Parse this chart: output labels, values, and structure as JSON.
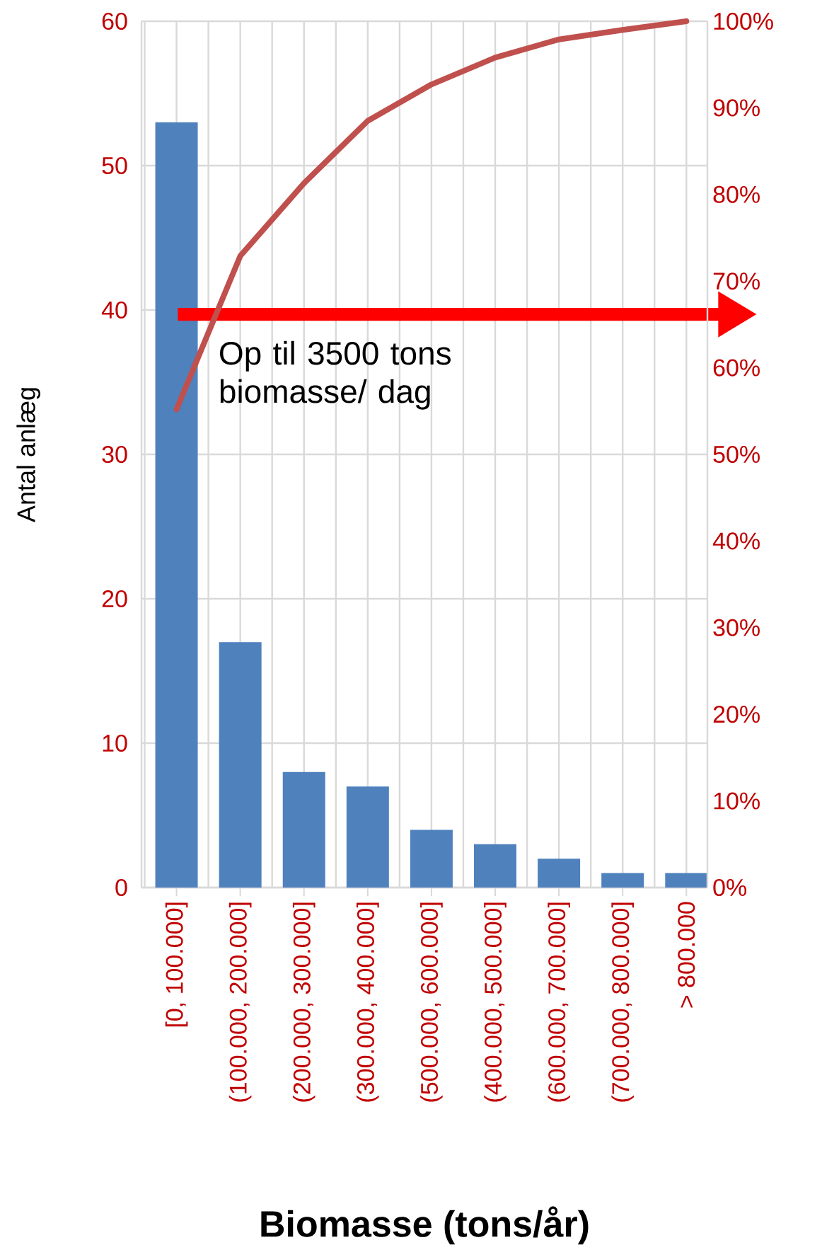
{
  "chart_data": {
    "type": "bar",
    "categories": [
      "[0, 100.000]",
      "(100.000, 200.000]",
      "(200.000, 300.000]",
      "(300.000, 400.000]",
      "(500.000, 600.000]",
      "(400.000, 500.000]",
      "(600.000, 700.000]",
      "(700.000, 800.000]",
      "> 800.000"
    ],
    "series": [
      {
        "color": "#4f81bd",
        "values": [
          53,
          17,
          8,
          7,
          4,
          3,
          2,
          1,
          1
        ]
      },
      {
        "type": "line",
        "axis": "y2",
        "color": "#c0504d",
        "values": [
          55.2,
          72.9,
          81.3,
          88.5,
          92.7,
          95.8,
          97.9,
          99.0,
          100
        ]
      }
    ],
    "xlabel": "Biomasse (tons/år)",
    "ylabel": "Antal anlæg",
    "ylim": [
      0,
      60
    ],
    "yticks": [
      0,
      10,
      20,
      30,
      40,
      50,
      60
    ],
    "y2lim": [
      0,
      100
    ],
    "y2ticks": [
      {
        "value": 0,
        "label": "0%"
      },
      {
        "value": 10,
        "label": "10%"
      },
      {
        "value": 20,
        "label": "20%"
      },
      {
        "value": 30,
        "label": "30%"
      },
      {
        "value": 40,
        "label": "40%"
      },
      {
        "value": 50,
        "label": "50%"
      },
      {
        "value": 60,
        "label": "60%"
      },
      {
        "value": 70,
        "label": "70%"
      },
      {
        "value": 80,
        "label": "80%"
      },
      {
        "value": 90,
        "label": "90%"
      },
      {
        "value": 100,
        "label": "100%"
      }
    ],
    "grid": true,
    "annotations": [
      "Op til 3500 tons biomasse/ dag"
    ]
  }
}
